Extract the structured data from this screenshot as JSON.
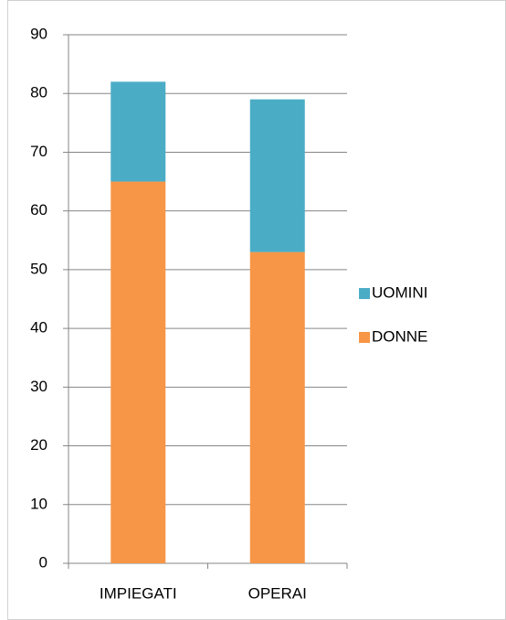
{
  "chart_data": {
    "type": "stacked_bar",
    "categories": [
      "IMPIEGATI",
      "OPERAI"
    ],
    "series": [
      {
        "name": "DONNE",
        "color": "#f79646",
        "values": [
          65,
          53
        ]
      },
      {
        "name": "UOMINI",
        "color": "#4bacc6",
        "values": [
          17,
          26
        ]
      }
    ],
    "ylim": [
      0,
      90
    ],
    "yticks": [
      0,
      10,
      20,
      30,
      40,
      50,
      60,
      70,
      80,
      90
    ],
    "grid": true,
    "legend": "right"
  }
}
